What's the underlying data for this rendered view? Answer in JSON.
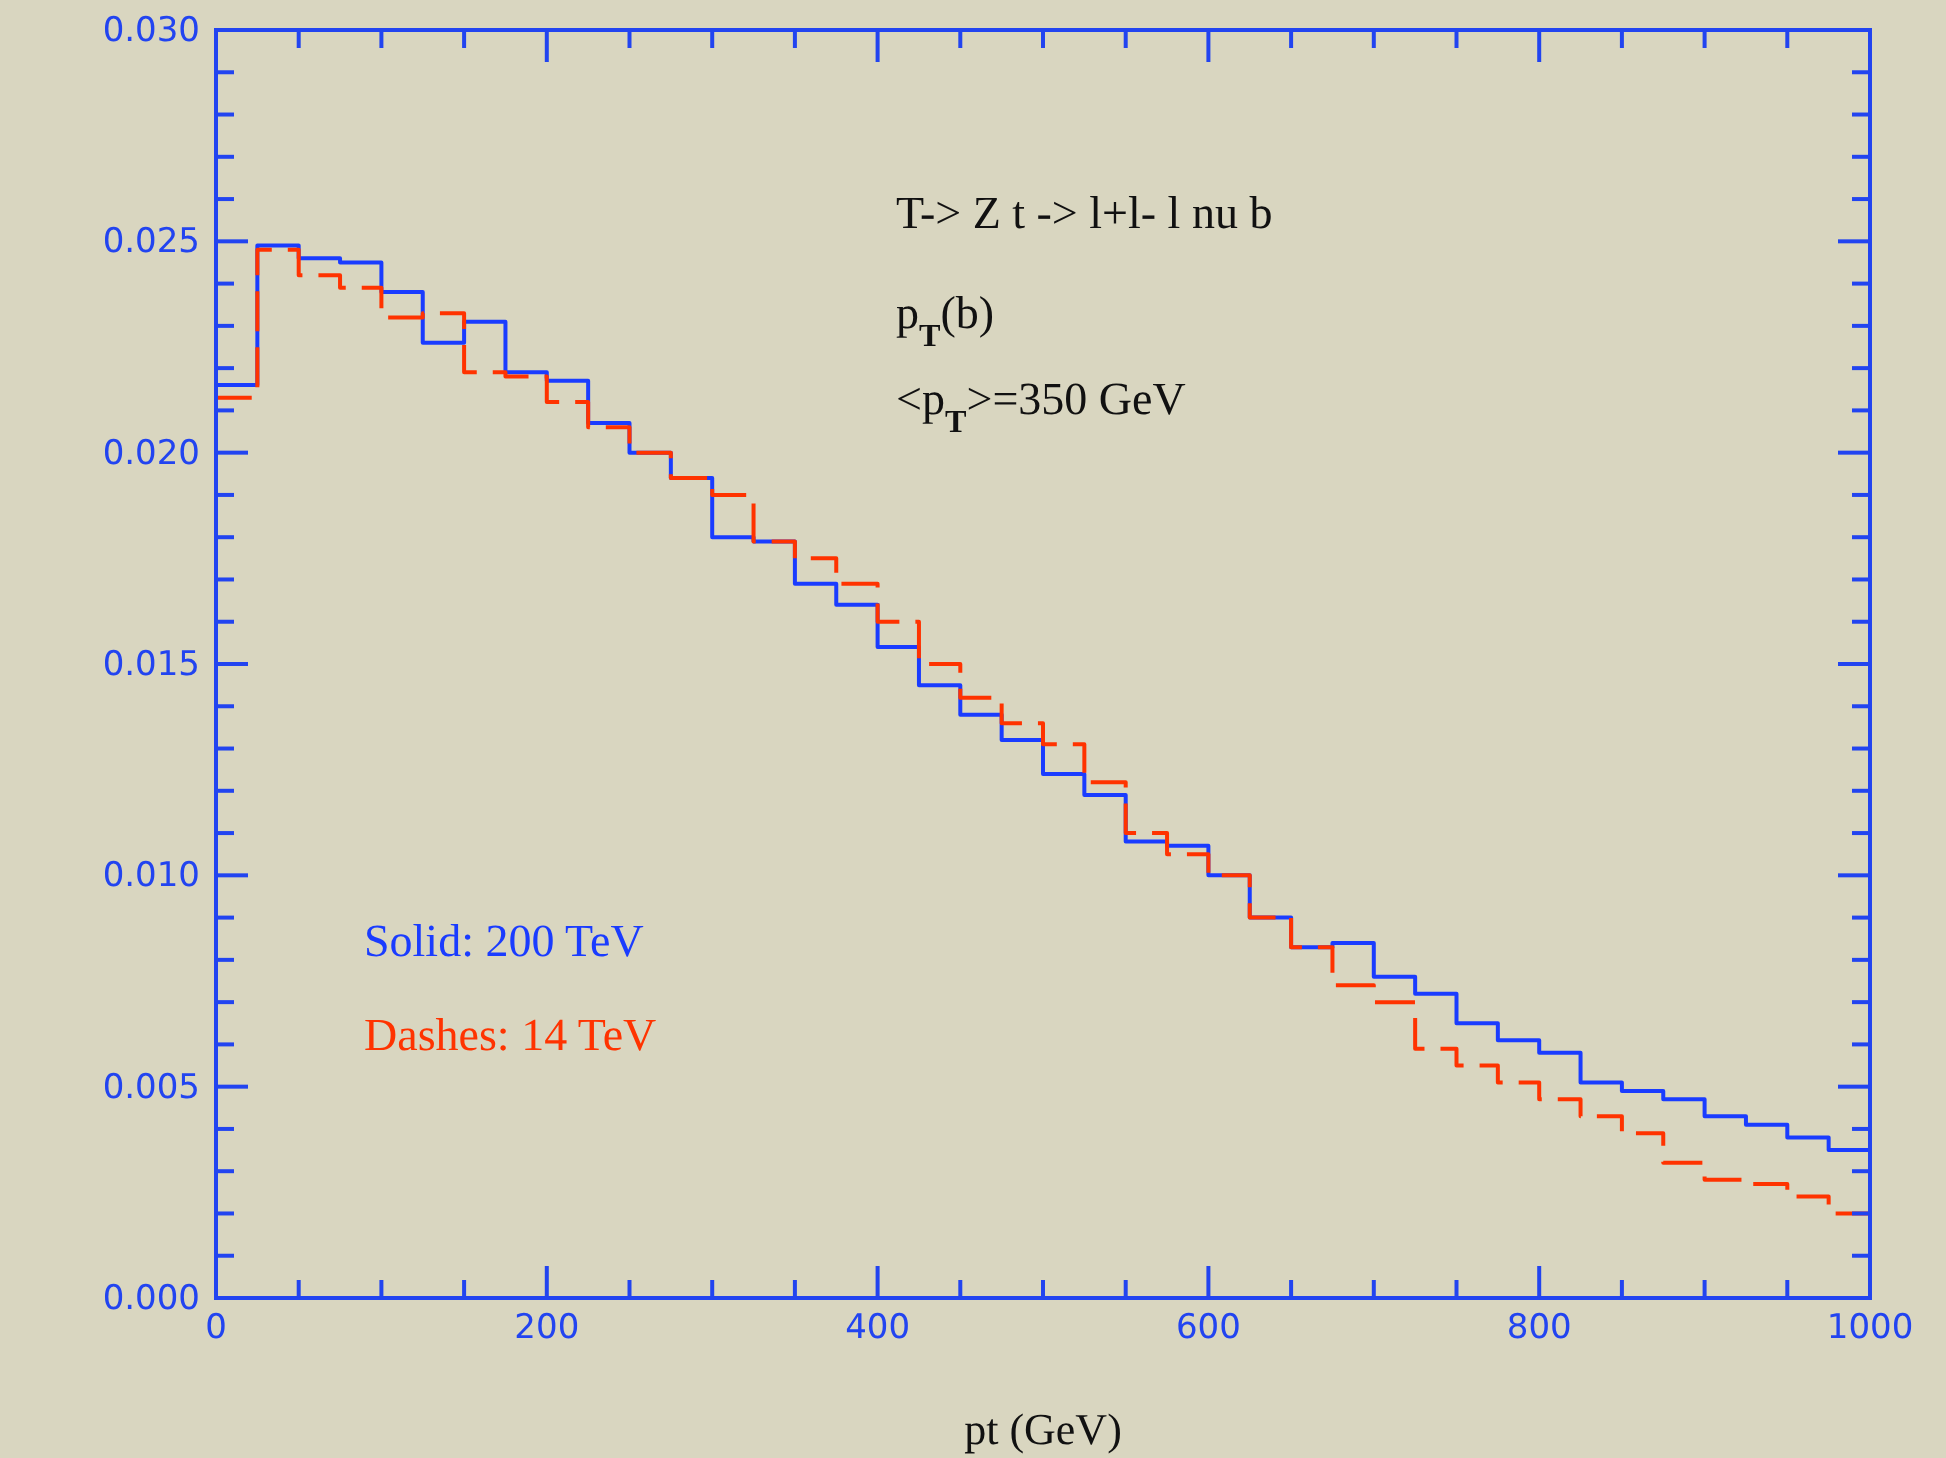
{
  "chart_data": {
    "type": "histogram",
    "xlabel": "pt (GeV)",
    "annotations": [
      "T-> Z t -> l+l- l nu b",
      "p$_{T}$(b)",
      "<p$_{T}$>=350 GeV"
    ],
    "bins": [
      0,
      25,
      50,
      75,
      100,
      125,
      150,
      175,
      200,
      225,
      250,
      275,
      300,
      325,
      350,
      375,
      400,
      425,
      450,
      475,
      500,
      525,
      550,
      575,
      600,
      625,
      650,
      675,
      700,
      725,
      750,
      775,
      800,
      825,
      850,
      875,
      900,
      925,
      950,
      975,
      1000
    ],
    "series": [
      {
        "name": "Solid: 200 TeV",
        "color": "#1a3cff",
        "line_style": "solid",
        "values": [
          0.0216,
          0.0249,
          0.0246,
          0.0245,
          0.0238,
          0.0226,
          0.0231,
          0.0219,
          0.0217,
          0.0207,
          0.02,
          0.0194,
          0.018,
          0.0179,
          0.0169,
          0.0164,
          0.0154,
          0.0145,
          0.0138,
          0.0132,
          0.0124,
          0.0119,
          0.0108,
          0.0107,
          0.01,
          0.009,
          0.0083,
          0.0084,
          0.0076,
          0.0072,
          0.0065,
          0.0061,
          0.0058,
          0.0051,
          0.0049,
          0.0047,
          0.0043,
          0.0041,
          0.0038,
          0.0035
        ]
      },
      {
        "name": "Dashes: 14 TeV",
        "color": "#ff3300",
        "line_style": "dashed",
        "values": [
          0.0213,
          0.0248,
          0.0242,
          0.0239,
          0.0232,
          0.0233,
          0.0219,
          0.0218,
          0.0212,
          0.0206,
          0.02,
          0.0194,
          0.019,
          0.0179,
          0.0175,
          0.0169,
          0.016,
          0.015,
          0.0142,
          0.0136,
          0.0131,
          0.0122,
          0.011,
          0.0105,
          0.01,
          0.009,
          0.0083,
          0.0074,
          0.007,
          0.0059,
          0.0055,
          0.0051,
          0.0047,
          0.0043,
          0.0039,
          0.0032,
          0.0028,
          0.0027,
          0.0024,
          0.002
        ]
      }
    ],
    "xlim": [
      0,
      1000
    ],
    "ylim": [
      0,
      0.03
    ],
    "xticks": [
      0,
      {
        "value": 50,
        "label": null
      },
      {
        "value": 100,
        "label": null
      },
      {
        "value": 150,
        "label": null
      },
      200,
      {
        "value": 250,
        "label": null
      },
      {
        "value": 300,
        "label": null
      },
      {
        "value": 350,
        "label": null
      },
      400,
      {
        "value": 450,
        "label": null
      },
      {
        "value": 500,
        "label": null
      },
      {
        "value": 550,
        "label": null
      },
      600,
      {
        "value": 650,
        "label": null
      },
      {
        "value": 700,
        "label": null
      },
      {
        "value": 750,
        "label": null
      },
      800,
      {
        "value": 850,
        "label": null
      },
      {
        "value": 900,
        "label": null
      },
      {
        "value": 950,
        "label": null
      },
      1000
    ],
    "yticks": [
      {
        "value": 0,
        "label": "0.000"
      },
      {
        "value": 0.001,
        "label": null
      },
      {
        "value": 0.002,
        "label": null
      },
      {
        "value": 0.003,
        "label": null
      },
      {
        "value": 0.004,
        "label": null
      },
      {
        "value": 0.005,
        "label": "0.005"
      },
      {
        "value": 0.006,
        "label": null
      },
      {
        "value": 0.007,
        "label": null
      },
      {
        "value": 0.008,
        "label": null
      },
      {
        "value": 0.009,
        "label": null
      },
      {
        "value": 0.01,
        "label": "0.010"
      },
      {
        "value": 0.011,
        "label": null
      },
      {
        "value": 0.012,
        "label": null
      },
      {
        "value": 0.013,
        "label": null
      },
      {
        "value": 0.014,
        "label": null
      },
      {
        "value": 0.015,
        "label": "0.015"
      },
      {
        "value": 0.016,
        "label": null
      },
      {
        "value": 0.017,
        "label": null
      },
      {
        "value": 0.018,
        "label": null
      },
      {
        "value": 0.019,
        "label": null
      },
      {
        "value": 0.02,
        "label": "0.020"
      },
      {
        "value": 0.021,
        "label": null
      },
      {
        "value": 0.022,
        "label": null
      },
      {
        "value": 0.023,
        "label": null
      },
      {
        "value": 0.024,
        "label": null
      },
      {
        "value": 0.025,
        "label": "0.025"
      },
      {
        "value": 0.026,
        "label": null
      },
      {
        "value": 0.027,
        "label": null
      },
      {
        "value": 0.028,
        "label": null
      },
      {
        "value": 0.029,
        "label": null
      },
      {
        "value": 0.03,
        "label": "0.030"
      }
    ],
    "legend": "bottom left",
    "grid": false
  }
}
